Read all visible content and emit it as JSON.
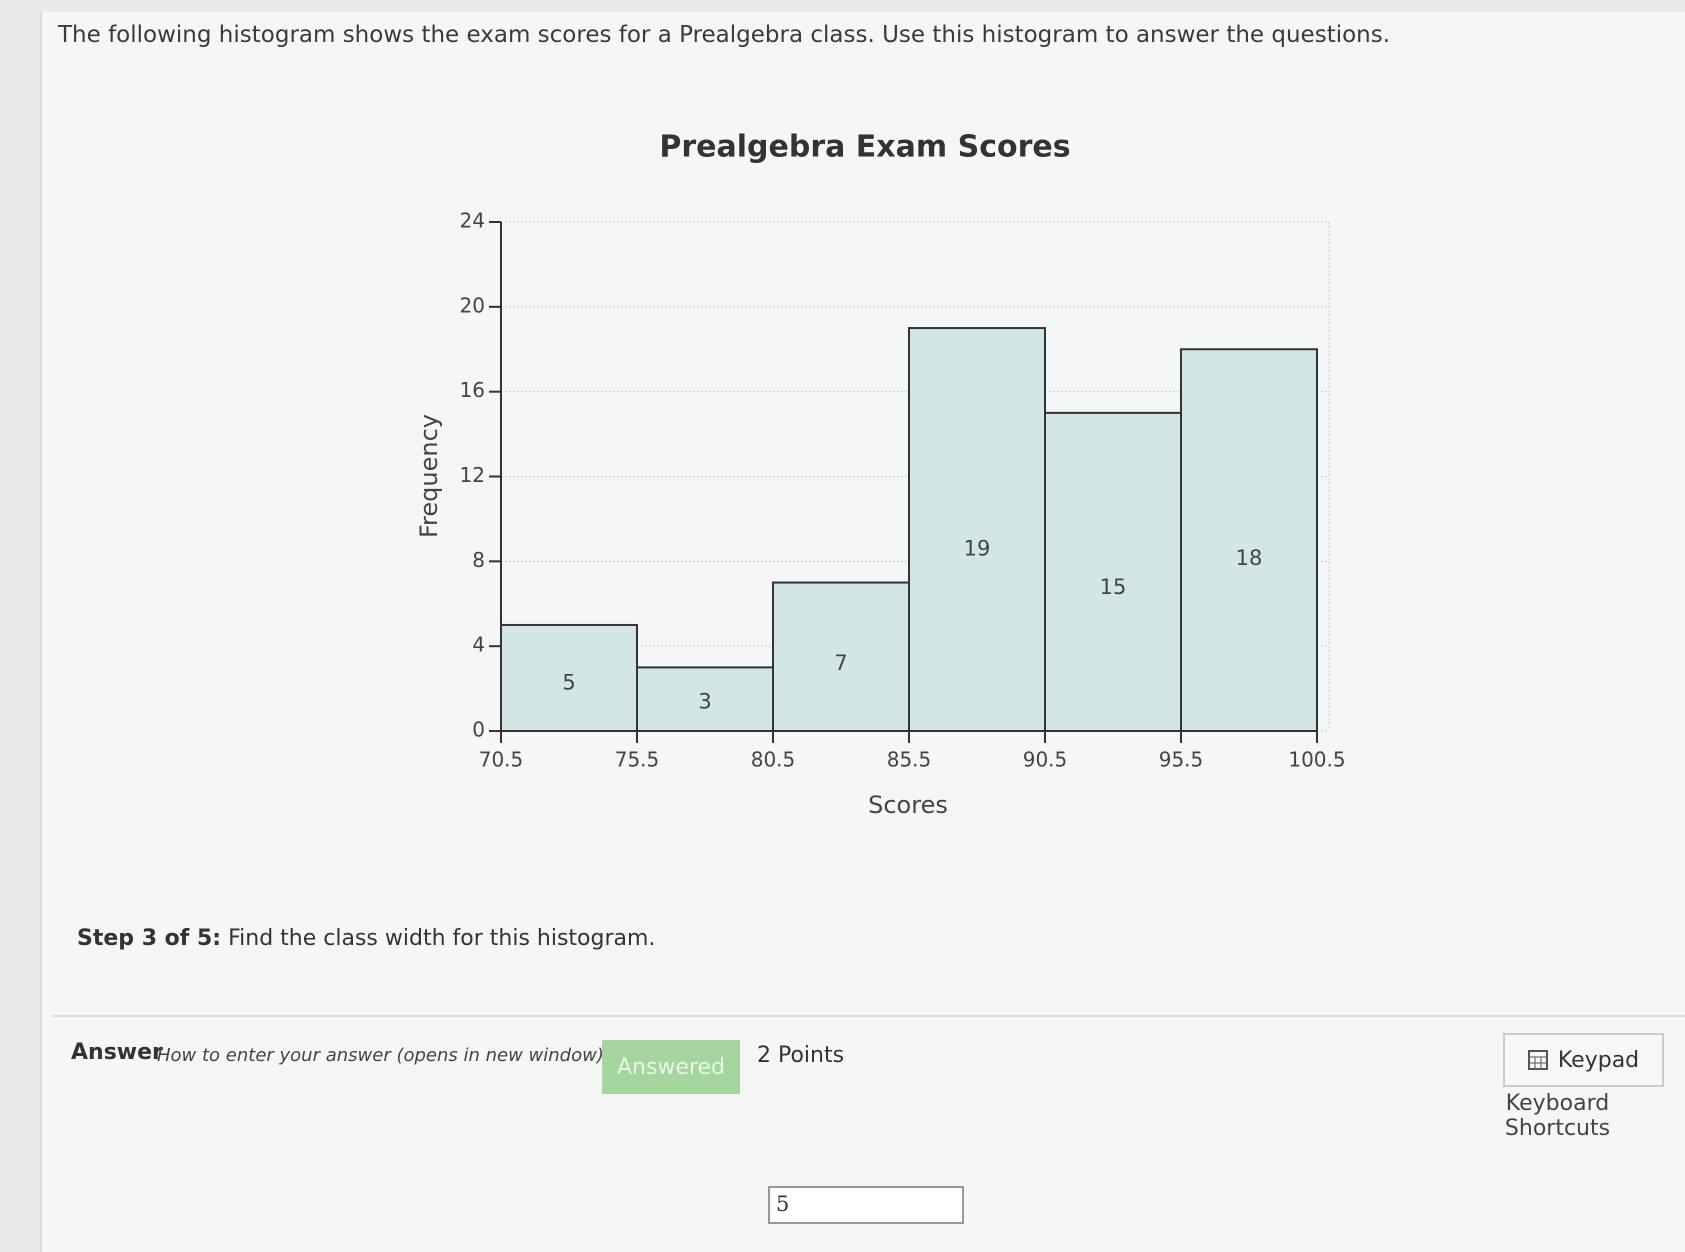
{
  "intro": "The following histogram shows the exam scores for a Prealgebra class. Use this histogram to answer the questions.",
  "chart_data": {
    "type": "histogram",
    "title": "Prealgebra Exam Scores",
    "bins": [
      70.5,
      75.5,
      80.5,
      85.5,
      90.5,
      95.5,
      100.5
    ],
    "values": [
      5,
      3,
      7,
      19,
      15,
      18
    ],
    "color": "#d3e6e6",
    "xlabel": "Scores",
    "ylabel": "Frequency",
    "xlim": [
      70.5,
      100.5
    ],
    "xticks": [
      70.5,
      75.5,
      80.5,
      85.5,
      90.5,
      95.5,
      100.5
    ],
    "ylim": [
      0,
      24
    ],
    "yticks": [
      0,
      4,
      8,
      12,
      16,
      20,
      24
    ],
    "grid": true
  },
  "step": {
    "label": "Step 3 of 5:",
    "text": "Find the class width for this histogram."
  },
  "answer": {
    "label": "Answer",
    "help": "How to enter your answer (opens in new window)",
    "status": "Answered",
    "points": "2 Points",
    "input": "5"
  },
  "tools": {
    "keypad": "Keypad",
    "shortcuts": "Keyboard Shortcuts"
  }
}
